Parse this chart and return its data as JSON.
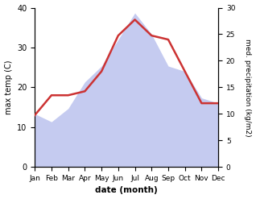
{
  "months": [
    "Jan",
    "Feb",
    "Mar",
    "Apr",
    "May",
    "Jun",
    "Jul",
    "Aug",
    "Sep",
    "Oct",
    "Nov",
    "Dec"
  ],
  "max_temp": [
    13,
    18,
    18,
    19,
    24,
    33,
    37,
    33,
    32,
    24,
    16,
    16
  ],
  "precipitation": [
    10,
    8.5,
    11,
    16,
    19,
    24,
    29,
    25,
    19,
    18,
    13,
    12
  ],
  "temp_color": "#cc3333",
  "precip_fill_color": "#c5cbf0",
  "xlabel": "date (month)",
  "ylabel_left": "max temp (C)",
  "ylabel_right": "med. precipitation (kg/m2)",
  "ylim_left": [
    0,
    40
  ],
  "ylim_right": [
    0,
    30
  ],
  "yticks_left": [
    0,
    10,
    20,
    30,
    40
  ],
  "yticks_right": [
    0,
    5,
    10,
    15,
    20,
    25,
    30
  ],
  "temp_linewidth": 1.8
}
